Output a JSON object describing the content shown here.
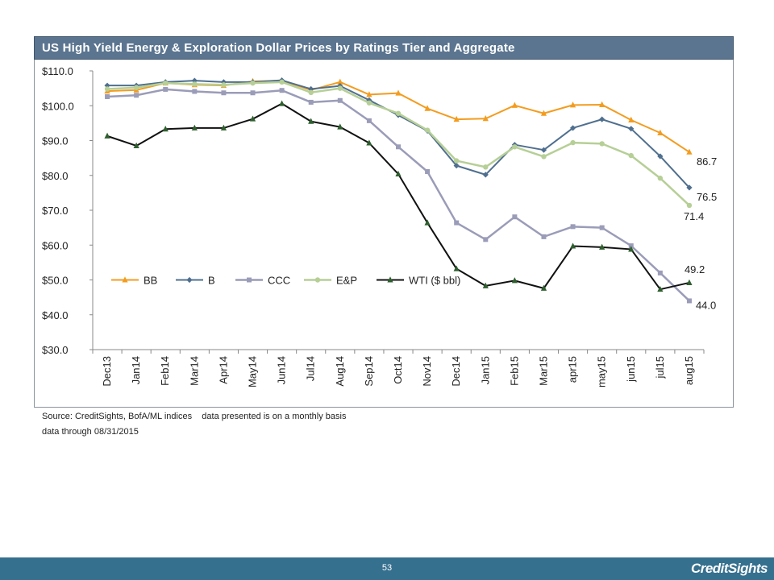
{
  "header": {
    "title": "US High Yield Energy & Exploration Dollar Prices by Ratings Tier and Aggregate"
  },
  "source": {
    "line1": "Source: CreditSights, BofA/ML indices    data presented is on a monthly basis",
    "line2": "data through 08/31/2015"
  },
  "footer": {
    "page_number": "53",
    "brand": "CreditSights"
  },
  "colors": {
    "title_bar": "#5b7590",
    "footer_bar": "#36708f",
    "brand": "#ffffff"
  },
  "chart_data": {
    "type": "line",
    "title": "US High Yield Energy & Exploration Dollar Prices by Ratings Tier and Aggregate",
    "categories": [
      "Dec13",
      "Jan14",
      "Feb14",
      "Mar14",
      "Apr14",
      "May14",
      "Jun14",
      "Jul14",
      "Aug14",
      "Sep14",
      "Oct14",
      "Nov14",
      "Dec14",
      "Jan15",
      "Feb15",
      "Mar15",
      "apr15",
      "may15",
      "jun15",
      "jul15",
      "aug15"
    ],
    "ylim": [
      30,
      110
    ],
    "yticks": [
      "$110.0",
      "$100.0",
      "$90.0",
      "$80.0",
      "$70.0",
      "$60.0",
      "$50.0",
      "$40.0",
      "$30.0"
    ],
    "ytick_values": [
      110,
      100,
      90,
      80,
      70,
      60,
      50,
      40,
      30
    ],
    "grid": false,
    "legend_position": "lower-left",
    "series": [
      {
        "name": "BB",
        "color": "#f39c1f",
        "marker": "triangle",
        "width": 2,
        "values": [
          104.2,
          104.5,
          106.5,
          106,
          105.8,
          107,
          107.2,
          104.5,
          106.8,
          103.2,
          103.6,
          99.2,
          96.1,
          96.3,
          100.1,
          97.8,
          100.2,
          100.3,
          95.9,
          92.2,
          86.7
        ],
        "end_label": "86.7"
      },
      {
        "name": "B",
        "color": "#4f6f8f",
        "marker": "diamond",
        "width": 2,
        "values": [
          105.8,
          105.8,
          106.8,
          107.2,
          106.8,
          106.8,
          107.3,
          104.8,
          105.7,
          101.6,
          97.3,
          92.8,
          82.8,
          80.2,
          88.8,
          87.3,
          93.6,
          96.1,
          93.4,
          85.5,
          76.5
        ],
        "end_label": "76.5"
      },
      {
        "name": "CCC",
        "color": "#9a9cb8",
        "marker": "square",
        "width": 2.5,
        "values": [
          102.6,
          103,
          104.7,
          104.1,
          103.7,
          103.7,
          104.4,
          101,
          101.5,
          95.7,
          88.2,
          81.1,
          66.4,
          61.6,
          68.1,
          62.4,
          65.3,
          65,
          59.8,
          52,
          44.0
        ],
        "end_label": "44.0"
      },
      {
        "name": "E&P",
        "color": "#b6cf96",
        "marker": "circle",
        "width": 2.5,
        "values": [
          104.8,
          105.2,
          106.5,
          106.2,
          106,
          106.5,
          106.8,
          103.8,
          105,
          100.8,
          97.8,
          93,
          84.2,
          82.4,
          88.2,
          85.4,
          89.4,
          89.1,
          85.7,
          79.2,
          71.4
        ],
        "end_label": "71.4"
      },
      {
        "name": "WTI ($ bbl)",
        "color": "#111111",
        "marker": "triangle",
        "marker_color": "#2f5f2f",
        "width": 2,
        "values": [
          91.3,
          88.5,
          93.3,
          93.6,
          93.6,
          96.2,
          100.6,
          95.5,
          93.9,
          89.3,
          80.4,
          66.4,
          53.2,
          48.3,
          49.8,
          47.6,
          59.7,
          59.4,
          58.8,
          47.3,
          49.2
        ],
        "end_label": "49.2"
      }
    ]
  }
}
